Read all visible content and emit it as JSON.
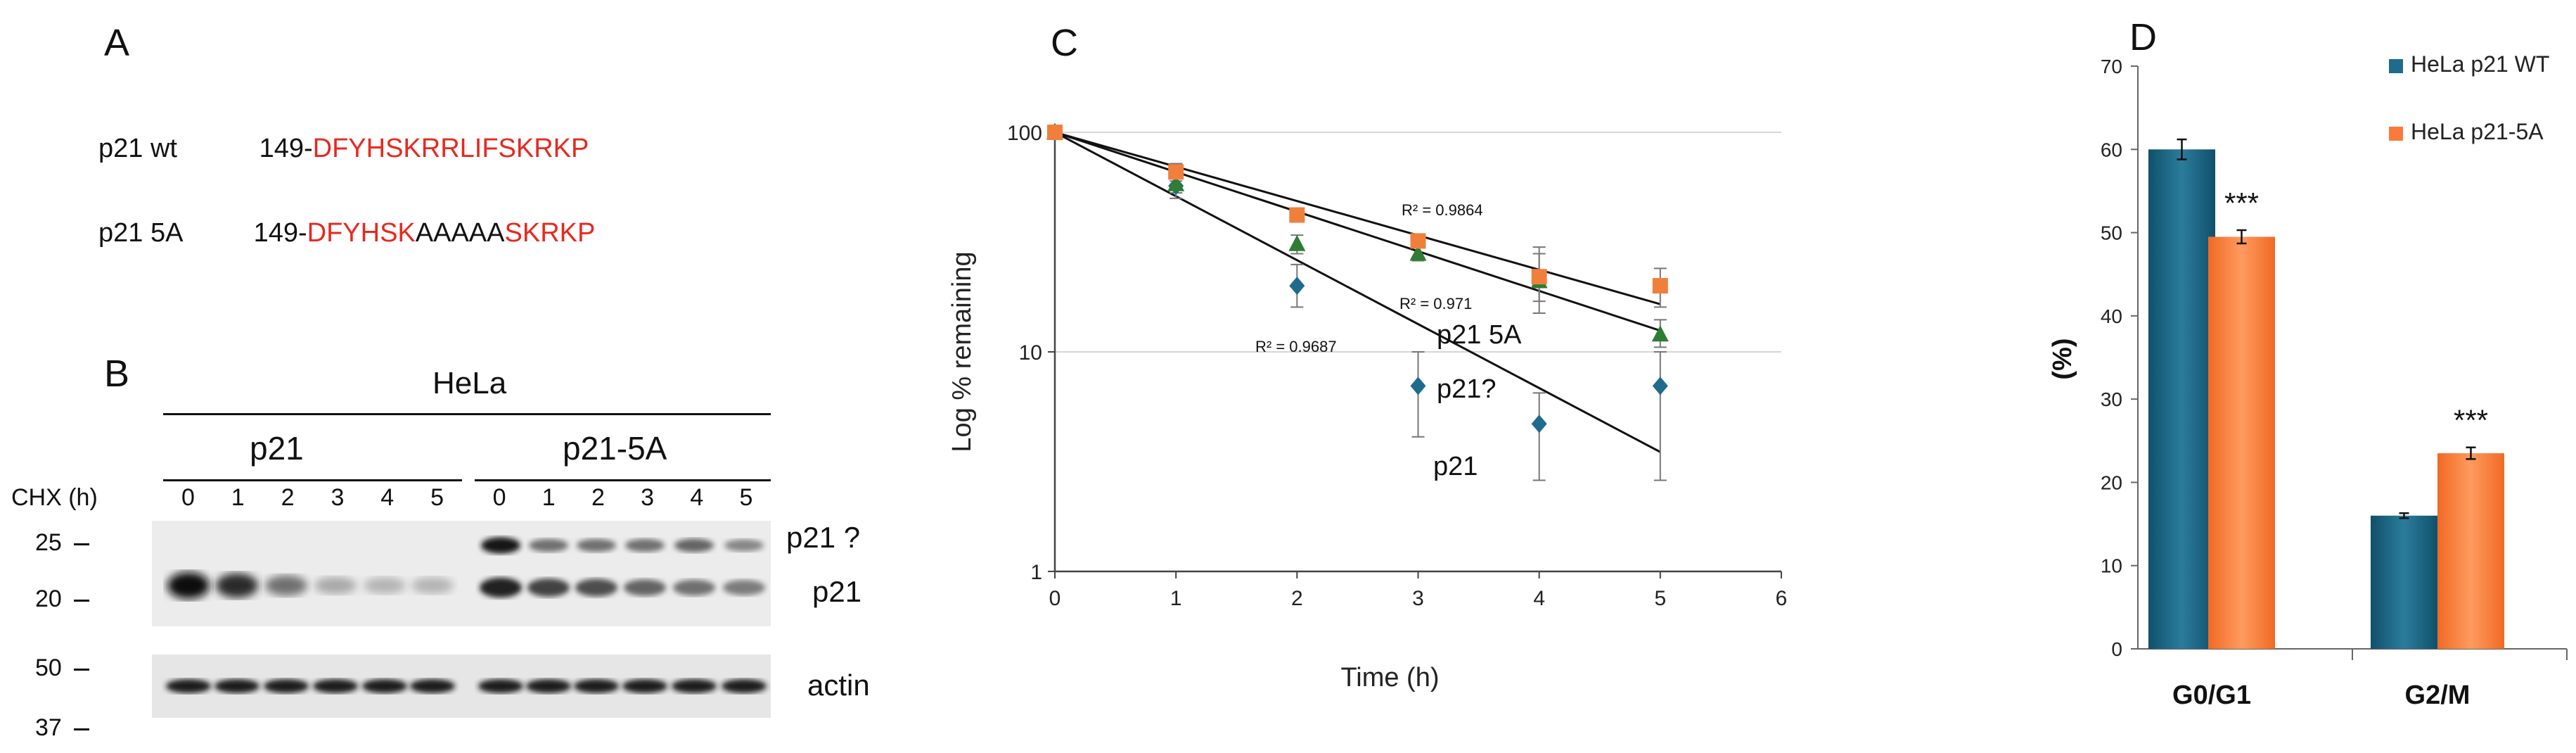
{
  "panel_a": {
    "label": "A",
    "rows": [
      {
        "name": "p21 wt",
        "prefix": "149-",
        "segments": [
          {
            "t": "DFYHSKRRLIFSKRKP",
            "c": "red"
          }
        ]
      },
      {
        "name": "p21 5A",
        "prefix": "149-",
        "segments": [
          {
            "t": "DFYHSK",
            "c": "red"
          },
          {
            "t": "AAAAA",
            "c": "black"
          },
          {
            "t": "SKRKP",
            "c": "red"
          }
        ]
      }
    ]
  },
  "panel_b": {
    "label": "B",
    "cell_line": "HeLa",
    "groups": [
      "p21",
      "p21-5A"
    ],
    "time_label": "CHX (h)",
    "timepoints": [
      "0",
      "1",
      "2",
      "3",
      "4",
      "5"
    ],
    "mw_markers": [
      "25",
      "20",
      "50",
      "37"
    ],
    "band_labels": [
      "p21 ?",
      "p21",
      "actin"
    ],
    "p21_wt_intensity": [
      1.0,
      0.85,
      0.55,
      0.3,
      0.25,
      0.25
    ],
    "p21_5a_upper_intensity": [
      0.95,
      0.55,
      0.55,
      0.55,
      0.6,
      0.45
    ],
    "p21_5a_lower_intensity": [
      0.9,
      0.75,
      0.7,
      0.6,
      0.55,
      0.5
    ]
  },
  "chart_data": [
    {
      "panel": "C",
      "type": "scatter",
      "xlabel": "Time (h)",
      "ylabel": "Log % remaining",
      "yscale": "log",
      "xlim": [
        0,
        6
      ],
      "ylim": [
        1,
        100
      ],
      "xticks": [
        "0",
        "1",
        "2",
        "3",
        "4",
        "5",
        "6"
      ],
      "yticks": [
        "1",
        "10",
        "100"
      ],
      "series": [
        {
          "name": "p21",
          "color": "#1f6b8c",
          "marker": "diamond",
          "x": [
            0,
            1,
            2,
            3,
            4,
            5
          ],
          "y": [
            100,
            57,
            20,
            7,
            4.7,
            7
          ],
          "err_lo": [
            100,
            50,
            16,
            4.1,
            2.6,
            2.6
          ],
          "err_hi": [
            100,
            66,
            25,
            10,
            6.5,
            10
          ],
          "fit_end": 3.5,
          "r2": "R² = 0.9687",
          "label": "p21"
        },
        {
          "name": "p21?",
          "color": "#2e7d32",
          "marker": "triangle",
          "x": [
            0,
            1,
            2,
            3,
            4,
            5
          ],
          "y": [
            100,
            58,
            31,
            28,
            21,
            12
          ],
          "err_lo": [
            100,
            53,
            28,
            26,
            15,
            10.5
          ],
          "err_hi": [
            100,
            63,
            34,
            31,
            28,
            14
          ],
          "fit_end": 12.5,
          "r2": "R² = 0.971",
          "label": "p21?"
        },
        {
          "name": "p21 5A",
          "color": "#f07f3c",
          "marker": "square",
          "x": [
            0,
            1,
            2,
            3,
            4,
            5
          ],
          "y": [
            100,
            66,
            42,
            32,
            22,
            20
          ],
          "err_lo": [
            100,
            60,
            40,
            30,
            17,
            16
          ],
          "err_hi": [
            100,
            72,
            44,
            34,
            30,
            24
          ],
          "fit_end": 16.5,
          "r2": "R² = 0.9864",
          "label": "p21 5A"
        }
      ]
    },
    {
      "panel": "D",
      "type": "bar",
      "ylabel": "(%)",
      "categories": [
        "G0/G1",
        "G2/M"
      ],
      "ylim": [
        0,
        70
      ],
      "yticks": [
        "0",
        "10",
        "20",
        "30",
        "40",
        "50",
        "60",
        "70"
      ],
      "series": [
        {
          "name": "HeLa p21 WT",
          "color": "#1f6b8c",
          "values": [
            60,
            16
          ],
          "err": [
            1.2,
            0.3
          ]
        },
        {
          "name": "HeLa p21-5A",
          "color": "#f97a3a",
          "values": [
            49.5,
            23.5
          ],
          "err": [
            0.8,
            0.7
          ]
        }
      ],
      "significance": [
        "***",
        "***"
      ]
    }
  ],
  "panel_c_label": "C",
  "panel_d_label": "D"
}
